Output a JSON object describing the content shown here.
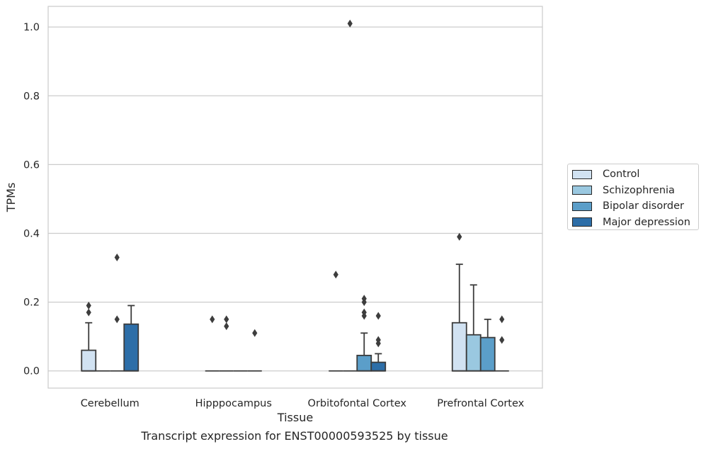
{
  "caption": "Transcript expression for ENST00000593525 by tissue",
  "chart_data": {
    "type": "box",
    "xlabel": "Tissue",
    "ylabel": "TPMs",
    "ylim": [
      -0.05,
      1.06
    ],
    "yticks": [
      "0.0",
      "0.2",
      "0.4",
      "0.6",
      "0.8",
      "1.0"
    ],
    "ytick_values": [
      0.0,
      0.2,
      0.4,
      0.6,
      0.8,
      1.0
    ],
    "grid": true,
    "legend_position": "right",
    "categories": [
      "Cerebellum",
      "Hipppocampus",
      "Orbitofontal Cortex",
      "Prefrontal Cortex"
    ],
    "series": [
      {
        "name": "Control",
        "color": "#d1e2f2",
        "boxes": [
          {
            "q1": 0.0,
            "median": 0.0,
            "q3": 0.06,
            "whisker_low": 0.0,
            "whisker_high": 0.14,
            "outliers": [
              0.17,
              0.19
            ]
          },
          {
            "q1": 0.0,
            "median": 0.0,
            "q3": 0.0,
            "whisker_low": 0.0,
            "whisker_high": 0.0,
            "outliers": [
              0.15
            ]
          },
          {
            "q1": 0.0,
            "median": 0.0,
            "q3": 0.0,
            "whisker_low": 0.0,
            "whisker_high": 0.0,
            "outliers": [
              0.28
            ]
          },
          {
            "q1": 0.0,
            "median": 0.0,
            "q3": 0.14,
            "whisker_low": 0.0,
            "whisker_high": 0.31,
            "outliers": [
              0.39
            ]
          }
        ]
      },
      {
        "name": "Schizophrenia",
        "color": "#9ac8e0",
        "boxes": [
          {
            "q1": 0.0,
            "median": 0.0,
            "q3": 0.0,
            "whisker_low": 0.0,
            "whisker_high": 0.0,
            "outliers": []
          },
          {
            "q1": 0.0,
            "median": 0.0,
            "q3": 0.0,
            "whisker_low": 0.0,
            "whisker_high": 0.0,
            "outliers": [
              0.13,
              0.15
            ]
          },
          {
            "q1": 0.0,
            "median": 0.0,
            "q3": 0.0,
            "whisker_low": 0.0,
            "whisker_high": 0.0,
            "outliers": [
              1.01
            ]
          },
          {
            "q1": 0.0,
            "median": 0.0,
            "q3": 0.105,
            "whisker_low": 0.0,
            "whisker_high": 0.25,
            "outliers": []
          }
        ]
      },
      {
        "name": "Bipolar disorder",
        "color": "#5b9ec9",
        "boxes": [
          {
            "q1": 0.0,
            "median": 0.0,
            "q3": 0.0,
            "whisker_low": 0.0,
            "whisker_high": 0.0,
            "outliers": [
              0.15,
              0.33
            ]
          },
          {
            "q1": 0.0,
            "median": 0.0,
            "q3": 0.0,
            "whisker_low": 0.0,
            "whisker_high": 0.0,
            "outliers": []
          },
          {
            "q1": 0.0,
            "median": 0.0,
            "q3": 0.045,
            "whisker_low": 0.0,
            "whisker_high": 0.11,
            "outliers": [
              0.16,
              0.17,
              0.2,
              0.21
            ]
          },
          {
            "q1": 0.0,
            "median": 0.0,
            "q3": 0.097,
            "whisker_low": 0.0,
            "whisker_high": 0.15,
            "outliers": []
          }
        ]
      },
      {
        "name": "Major depression",
        "color": "#2d6ea8",
        "boxes": [
          {
            "q1": 0.0,
            "median": 0.0,
            "q3": 0.136,
            "whisker_low": 0.0,
            "whisker_high": 0.19,
            "outliers": []
          },
          {
            "q1": 0.0,
            "median": 0.0,
            "q3": 0.0,
            "whisker_low": 0.0,
            "whisker_high": 0.0,
            "outliers": [
              0.11
            ]
          },
          {
            "q1": 0.0,
            "median": 0.0,
            "q3": 0.025,
            "whisker_low": 0.0,
            "whisker_high": 0.05,
            "outliers": [
              0.08,
              0.09,
              0.16
            ]
          },
          {
            "q1": 0.0,
            "median": 0.0,
            "q3": 0.0,
            "whisker_low": 0.0,
            "whisker_high": 0.0,
            "outliers": [
              0.09,
              0.15
            ]
          }
        ]
      }
    ]
  }
}
